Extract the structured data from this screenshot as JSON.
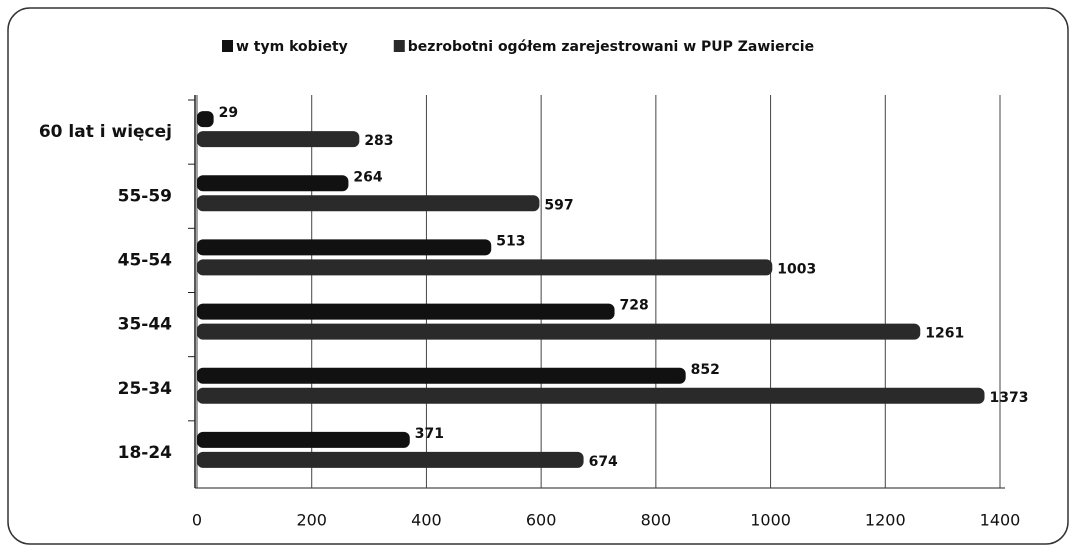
{
  "chart_data": {
    "type": "bar",
    "orientation": "horizontal",
    "categories": [
      "60 lat i więcej",
      "55-59",
      "45-54",
      "35-44",
      "25-34",
      "18-24"
    ],
    "series": [
      {
        "name": "w tym kobiety",
        "color": "#111111",
        "values": [
          29,
          264,
          513,
          728,
          852,
          371
        ]
      },
      {
        "name": "bezrobotni ogółem zarejestrowani w PUP Zawiercie",
        "color": "#2a2a2a",
        "values": [
          283,
          597,
          1003,
          1261,
          1373,
          674
        ]
      }
    ],
    "xlim": [
      0,
      1400
    ],
    "xticks": [
      0,
      200,
      400,
      600,
      800,
      1000,
      1200,
      1400
    ],
    "grid": true
  }
}
